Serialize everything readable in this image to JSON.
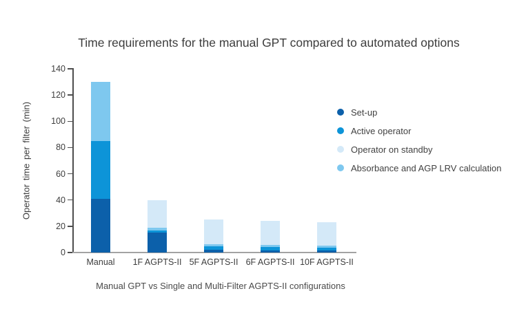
{
  "chart_data": {
    "type": "bar",
    "stacked": true,
    "title": "Time requirements for the manual GPT compared to automated options",
    "ylabel": "Operator time per filter (min)",
    "xlabel": "Manual GPT vs Single and Multi-Filter AGPTS-II configurations",
    "categories": [
      "Manual",
      "1F AGPTS-II",
      "5F AGPTS-II",
      "6F AGPTS-II",
      "10F AGPTS-II"
    ],
    "ylim": [
      0,
      140
    ],
    "yticks": [
      0,
      20,
      40,
      60,
      80,
      100,
      120,
      140
    ],
    "grid": false,
    "legend_position": "right",
    "series": [
      {
        "name": "Set-up",
        "color": "#0c60aa",
        "values": [
          41,
          15,
          2,
          1.5,
          1.5
        ]
      },
      {
        "name": "Active operator",
        "color": "#0d94d8",
        "values": [
          44,
          2,
          2.5,
          2.5,
          2
        ]
      },
      {
        "name": "Operator on standby",
        "color": "#d4e9f8",
        "values": [
          0,
          21,
          18.5,
          18,
          18
        ]
      },
      {
        "name": "Absorbance and AGP LRV calculation",
        "color": "#7ec8ef",
        "values": [
          45,
          2,
          2,
          2,
          1.5
        ]
      }
    ],
    "stack_order": [
      "Set-up",
      "Active operator",
      "Absorbance and AGP LRV calculation",
      "Operator on standby"
    ],
    "totals": [
      130,
      40,
      25,
      24,
      23
    ]
  }
}
